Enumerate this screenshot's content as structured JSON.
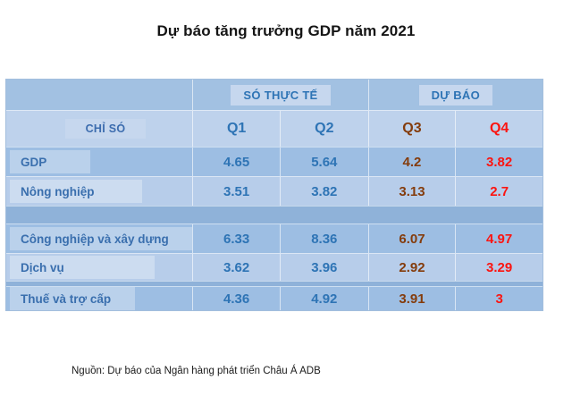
{
  "title": "Dự báo tăng trưởng GDP năm 2021",
  "source": "Nguồn: Dự báo của Ngân hàng phát triển Châu Á ADB",
  "chart_data": {
    "type": "table",
    "title": "Dự báo tăng trưởng GDP năm 2021",
    "index_label": "CHỈ SÓ",
    "column_groups": [
      {
        "label": "SÓ THỰC TẾ",
        "columns": [
          "Q1",
          "Q2"
        ]
      },
      {
        "label": "DỰ BÁO",
        "columns": [
          "Q3",
          "Q4"
        ]
      }
    ],
    "rows": [
      {
        "label": "GDP",
        "values": [
          "4.65",
          "5.64",
          "4.2",
          "3.82"
        ]
      },
      {
        "label": "Nông nghiệp",
        "values": [
          "3.51",
          "3.82",
          "3.13",
          "2.7"
        ]
      },
      {
        "label": "Công nghiệp và xây dựng",
        "values": [
          "6.33",
          "8.36",
          "6.07",
          "4.97"
        ]
      },
      {
        "label": "Dịch vụ",
        "values": [
          "3.62",
          "3.96",
          "2.92",
          "3.29"
        ]
      },
      {
        "label": "Thuế và trợ cấp",
        "values": [
          "4.36",
          "4.92",
          "3.91",
          "3"
        ]
      }
    ],
    "layout": {
      "legend_position": "none",
      "grid": "banded-rows"
    },
    "colors": {
      "actual_text": "#2e74b5",
      "q3_forecast_text": "#843c0c",
      "q4_forecast_text": "#fb1511",
      "row_dark": "#9dbee3",
      "row_light": "#b7cdea",
      "spacer": "#8fb2d9",
      "header_badge": "#c6d7ee"
    }
  }
}
